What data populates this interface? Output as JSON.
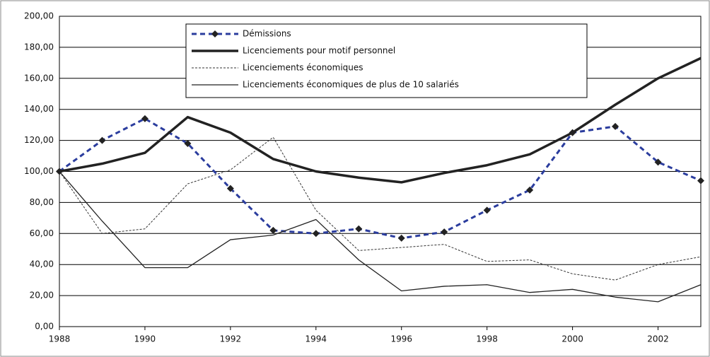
{
  "chart_data": {
    "type": "line",
    "x": [
      1988,
      1989,
      1990,
      1991,
      1992,
      1993,
      1994,
      1995,
      1996,
      1997,
      1998,
      1999,
      2000,
      2001,
      2002,
      2003
    ],
    "xlim": [
      1988,
      2003
    ],
    "xticks": [
      1988,
      1990,
      1992,
      1994,
      1996,
      1998,
      2000,
      2002
    ],
    "ylim": [
      0,
      200
    ],
    "yticks": [
      {
        "value": 0,
        "label": "0,00"
      },
      {
        "value": 20,
        "label": "20,00"
      },
      {
        "value": 40,
        "label": "40,00"
      },
      {
        "value": 60,
        "label": "60,00"
      },
      {
        "value": 80,
        "label": "80,00"
      },
      {
        "value": 100,
        "label": "100,00"
      },
      {
        "value": 120,
        "label": "120,00"
      },
      {
        "value": 140,
        "label": "140,00"
      },
      {
        "value": 160,
        "label": "160,00"
      },
      {
        "value": 180,
        "label": "180,00"
      },
      {
        "value": 200,
        "label": "200,00"
      }
    ],
    "grid": true,
    "legend": "top",
    "series": [
      {
        "name": "Démissions",
        "color": "#2b3d9e",
        "values": [
          100,
          120,
          134,
          118,
          89,
          62,
          60,
          63,
          57,
          61,
          75,
          88,
          125,
          129,
          106,
          94
        ]
      },
      {
        "name": "Licenciements pour motif personnel",
        "color": "#222222",
        "values": [
          100,
          105,
          112,
          135,
          125,
          108,
          100,
          96,
          93,
          99,
          104,
          111,
          125,
          143,
          160,
          173
        ]
      },
      {
        "name": "Licenciements économiques",
        "color": "#333333",
        "values": [
          100,
          60,
          63,
          92,
          101,
          122,
          75,
          49,
          51,
          53,
          42,
          43,
          34,
          30,
          40,
          45
        ]
      },
      {
        "name": "Licenciements économiques de plus de 10 salariés",
        "color": "#222222",
        "values": [
          100,
          68,
          38,
          38,
          56,
          59,
          69,
          43,
          23,
          26,
          27,
          22,
          24,
          19,
          16,
          27
        ]
      }
    ]
  }
}
